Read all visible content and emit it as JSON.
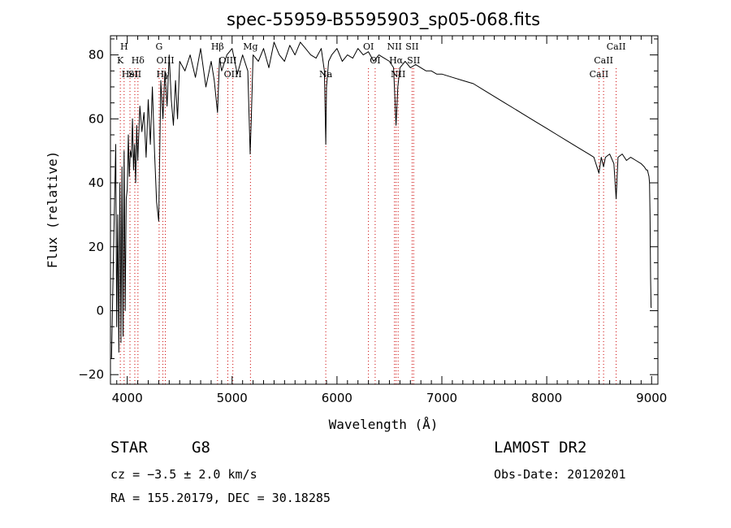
{
  "chart_data": {
    "type": "line",
    "title": "spec-55959-B5595903_sp05-068.fits",
    "xlabel": "Wavelength (Å)",
    "ylabel": "Flux (relative)",
    "xlim": [
      3840,
      9060
    ],
    "ylim": [
      -23,
      86
    ],
    "xticks": [
      4000,
      5000,
      6000,
      7000,
      8000,
      9000
    ],
    "yticks": [
      -20,
      0,
      20,
      40,
      60,
      80
    ],
    "grid": false,
    "series": [
      {
        "color": "#000000",
        "x": [
          3850,
          3870,
          3890,
          3900,
          3910,
          3920,
          3930,
          3940,
          3950,
          3960,
          3970,
          3980,
          3990,
          4000,
          4010,
          4020,
          4030,
          4040,
          4050,
          4060,
          4070,
          4080,
          4090,
          4100,
          4120,
          4140,
          4160,
          4180,
          4200,
          4220,
          4240,
          4260,
          4280,
          4300,
          4320,
          4340,
          4360,
          4380,
          4400,
          4420,
          4440,
          4460,
          4480,
          4500,
          4550,
          4600,
          4650,
          4700,
          4750,
          4800,
          4830,
          4861,
          4880,
          4900,
          4950,
          5000,
          5050,
          5100,
          5150,
          5172,
          5183,
          5200,
          5250,
          5300,
          5350,
          5400,
          5450,
          5500,
          5550,
          5600,
          5650,
          5700,
          5750,
          5800,
          5850,
          5880,
          5893,
          5900,
          5920,
          5950,
          6000,
          6050,
          6100,
          6150,
          6200,
          6250,
          6300,
          6350,
          6400,
          6450,
          6500,
          6540,
          6563,
          6580,
          6600,
          6650,
          6700,
          6750,
          6800,
          6850,
          6900,
          6950,
          7000,
          7100,
          7200,
          7300,
          7400,
          7500,
          7600,
          7700,
          7800,
          7900,
          8000,
          8100,
          8200,
          8300,
          8400,
          8450,
          8498,
          8520,
          8542,
          8560,
          8600,
          8640,
          8662,
          8680,
          8720,
          8760,
          8800,
          8850,
          8900,
          8930,
          8950,
          8960,
          8975,
          8980,
          8985,
          8990,
          8995,
          9000
        ],
        "y": [
          -15,
          20,
          52,
          -5,
          30,
          -13,
          40,
          -10,
          45,
          -8,
          50,
          0,
          35,
          38,
          55,
          42,
          50,
          48,
          60,
          44,
          52,
          40,
          58,
          47,
          64,
          56,
          62,
          48,
          66,
          52,
          70,
          50,
          34,
          28,
          72,
          60,
          75,
          64,
          80,
          66,
          58,
          72,
          60,
          78,
          75,
          80,
          73,
          82,
          70,
          78,
          72,
          62,
          79,
          75,
          80,
          82,
          74,
          80,
          75,
          49,
          60,
          80,
          78,
          82,
          76,
          84,
          80,
          78,
          83,
          80,
          84,
          82,
          80,
          79,
          82,
          75,
          52,
          70,
          78,
          80,
          82,
          78,
          80,
          79,
          82,
          80,
          81,
          78,
          80,
          79,
          78,
          76,
          58,
          70,
          76,
          78,
          76,
          77,
          76,
          75,
          75,
          74,
          74,
          73,
          72,
          71,
          69,
          67,
          65,
          63,
          61,
          59,
          57,
          55,
          53,
          51,
          49,
          48,
          43,
          48,
          45,
          48,
          49,
          46,
          35,
          48,
          49,
          47,
          48,
          47,
          46,
          45,
          44,
          44,
          42,
          40,
          30,
          10,
          1,
          1
        ]
      }
    ],
    "annotations": {
      "color": "#cc0000",
      "lines": [
        {
          "x": 3934,
          "labels": [
            "K"
          ],
          "row": [
            1
          ]
        },
        {
          "x": 3970,
          "labels": [
            "H"
          ],
          "row": [
            0
          ]
        },
        {
          "x": 4026,
          "labels": [
            "HeI"
          ],
          "row": [
            2
          ]
        },
        {
          "x": 4102,
          "labels": [
            "Hδ"
          ],
          "row": [
            1
          ]
        },
        {
          "x": 4072,
          "labels": [
            "SII"
          ],
          "row": [
            2
          ]
        },
        {
          "x": 4304,
          "labels": [
            "G"
          ],
          "row": [
            0
          ]
        },
        {
          "x": 4340,
          "labels": [
            "Hγ"
          ],
          "row": [
            2
          ]
        },
        {
          "x": 4363,
          "labels": [
            "OIII"
          ],
          "row": [
            1
          ]
        },
        {
          "x": 4861,
          "labels": [
            "Hβ"
          ],
          "row": [
            0
          ]
        },
        {
          "x": 4959,
          "labels": [
            "OIII"
          ],
          "row": [
            1
          ]
        },
        {
          "x": 5007,
          "labels": [
            "OIII"
          ],
          "row": [
            2
          ]
        },
        {
          "x": 5175,
          "labels": [
            "Mg"
          ],
          "row": [
            0
          ]
        },
        {
          "x": 5893,
          "labels": [
            "Na"
          ],
          "row": [
            2
          ]
        },
        {
          "x": 6300,
          "labels": [
            "OI"
          ],
          "row": [
            0
          ]
        },
        {
          "x": 6364,
          "labels": [
            "OI"
          ],
          "row": [
            1
          ]
        },
        {
          "x": 6548,
          "labels": [
            "NII"
          ],
          "row": [
            0
          ]
        },
        {
          "x": 6563,
          "labels": [
            "Hα"
          ],
          "row": [
            1
          ]
        },
        {
          "x": 6583,
          "labels": [
            "NII"
          ],
          "row": [
            2
          ]
        },
        {
          "x": 6716,
          "labels": [
            "SII"
          ],
          "row": [
            0
          ]
        },
        {
          "x": 6731,
          "labels": [
            "SII"
          ],
          "row": [
            1
          ]
        },
        {
          "x": 8498,
          "labels": [
            "CaII"
          ],
          "row": [
            2
          ]
        },
        {
          "x": 8542,
          "labels": [
            "CaII"
          ],
          "row": [
            1
          ]
        },
        {
          "x": 8662,
          "labels": [
            "CaII"
          ],
          "row": [
            0
          ]
        }
      ]
    }
  },
  "info": {
    "class": "STAR",
    "subclass": "G8",
    "survey": "LAMOST DR2",
    "cz": "cz = −3.5 ± 2.0 km/s",
    "obsdate": "Obs-Date: 20120201",
    "radec": "RA = 155.20179, DEC =  30.18285"
  }
}
